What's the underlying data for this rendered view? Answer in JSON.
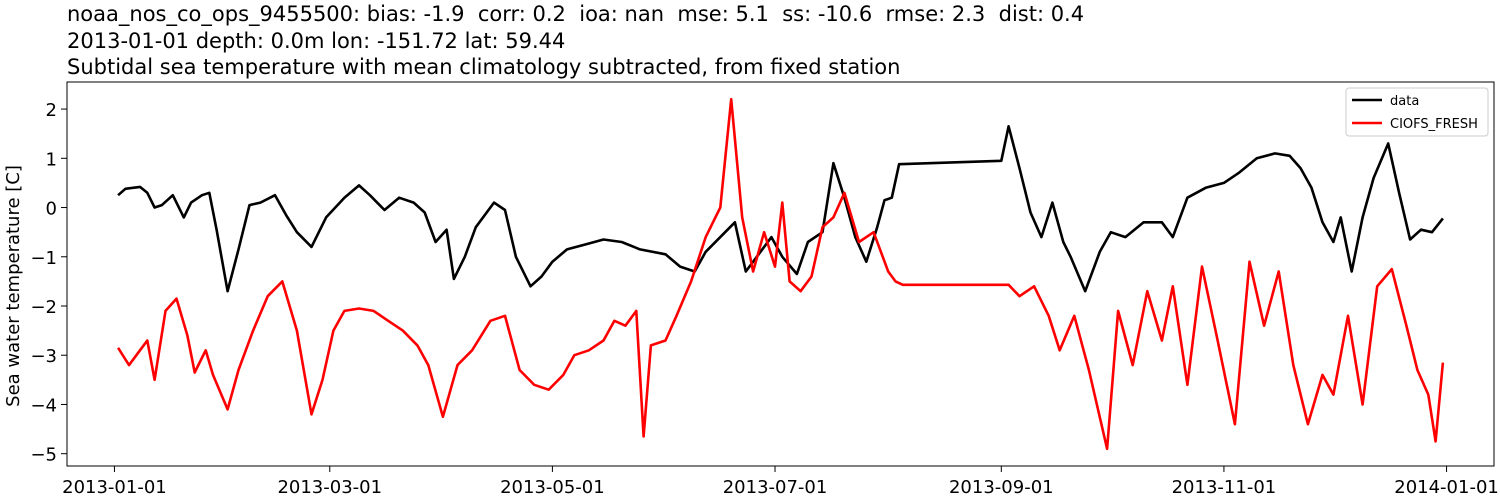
{
  "chart_data": {
    "type": "line",
    "title_lines": [
      "noaa_nos_co_ops_9455500: bias: -1.9  corr: 0.2  ioa: nan  mse: 5.1  ss: -10.6  rmse: 2.3  dist: 0.4",
      "2013-01-01 depth: 0.0m lon: -151.72 lat: 59.44",
      "Subtidal sea temperature with mean climatology subtracted, from fixed station"
    ],
    "xlabel": "",
    "ylabel": "Sea water temperature [C]",
    "x_ticks": [
      "2013-01-01",
      "2013-03-01",
      "2013-05-01",
      "2013-07-01",
      "2013-09-01",
      "2013-11-01",
      "2014-01-01"
    ],
    "x_range": [
      "2012-12-19",
      "2014-01-14"
    ],
    "ylim": [
      -5.25,
      2.55
    ],
    "y_ticks": [
      2,
      1,
      0,
      -1,
      -2,
      -3,
      -4,
      -5
    ],
    "legend_position": "top-right",
    "series": [
      {
        "name": "data",
        "color": "#000000",
        "points": [
          [
            "2013-01-02",
            0.25
          ],
          [
            "2013-01-04",
            0.38
          ],
          [
            "2013-01-08",
            0.42
          ],
          [
            "2013-01-10",
            0.3
          ],
          [
            "2013-01-12",
            0.0
          ],
          [
            "2013-01-14",
            0.05
          ],
          [
            "2013-01-17",
            0.25
          ],
          [
            "2013-01-20",
            -0.2
          ],
          [
            "2013-01-22",
            0.1
          ],
          [
            "2013-01-25",
            0.25
          ],
          [
            "2013-01-27",
            0.3
          ],
          [
            "2013-01-29",
            -0.45
          ],
          [
            "2013-02-01",
            -1.7
          ],
          [
            "2013-02-04",
            -0.85
          ],
          [
            "2013-02-07",
            0.05
          ],
          [
            "2013-02-10",
            0.1
          ],
          [
            "2013-02-14",
            0.25
          ],
          [
            "2013-02-17",
            -0.15
          ],
          [
            "2013-02-20",
            -0.5
          ],
          [
            "2013-02-24",
            -0.8
          ],
          [
            "2013-02-28",
            -0.2
          ],
          [
            "2013-03-05",
            0.2
          ],
          [
            "2013-03-09",
            0.45
          ],
          [
            "2013-03-12",
            0.25
          ],
          [
            "2013-03-16",
            -0.05
          ],
          [
            "2013-03-20",
            0.2
          ],
          [
            "2013-03-24",
            0.1
          ],
          [
            "2013-03-27",
            -0.1
          ],
          [
            "2013-03-30",
            -0.7
          ],
          [
            "2013-04-02",
            -0.45
          ],
          [
            "2013-04-04",
            -1.45
          ],
          [
            "2013-04-07",
            -1.0
          ],
          [
            "2013-04-10",
            -0.4
          ],
          [
            "2013-04-15",
            0.1
          ],
          [
            "2013-04-18",
            -0.05
          ],
          [
            "2013-04-21",
            -1.0
          ],
          [
            "2013-04-25",
            -1.6
          ],
          [
            "2013-04-28",
            -1.4
          ],
          [
            "2013-05-01",
            -1.1
          ],
          [
            "2013-05-05",
            -0.85
          ],
          [
            "2013-05-10",
            -0.75
          ],
          [
            "2013-05-15",
            -0.65
          ],
          [
            "2013-05-20",
            -0.7
          ],
          [
            "2013-05-25",
            -0.85
          ],
          [
            "2013-06-01",
            -0.95
          ],
          [
            "2013-06-05",
            -1.2
          ],
          [
            "2013-06-09",
            -1.3
          ],
          [
            "2013-06-12",
            -0.9
          ],
          [
            "2013-06-16",
            -0.6
          ],
          [
            "2013-06-20",
            -0.3
          ],
          [
            "2013-06-23",
            -1.3
          ],
          [
            "2013-06-26",
            -1.0
          ],
          [
            "2013-06-30",
            -0.6
          ],
          [
            "2013-07-03",
            -1.0
          ],
          [
            "2013-07-07",
            -1.35
          ],
          [
            "2013-07-10",
            -0.7
          ],
          [
            "2013-07-14",
            -0.5
          ],
          [
            "2013-07-17",
            0.9
          ],
          [
            "2013-07-20",
            0.2
          ],
          [
            "2013-07-23",
            -0.6
          ],
          [
            "2013-07-26",
            -1.1
          ],
          [
            "2013-07-29",
            -0.4
          ],
          [
            "2013-07-31",
            0.15
          ],
          [
            "2013-08-02",
            0.2
          ],
          [
            "2013-08-04",
            0.88
          ],
          [
            "2013-09-01",
            0.95
          ],
          [
            "2013-09-03",
            1.65
          ],
          [
            "2013-09-06",
            0.8
          ],
          [
            "2013-09-09",
            -0.1
          ],
          [
            "2013-09-12",
            -0.6
          ],
          [
            "2013-09-15",
            0.1
          ],
          [
            "2013-09-18",
            -0.7
          ],
          [
            "2013-09-20",
            -1.0
          ],
          [
            "2013-09-24",
            -1.7
          ],
          [
            "2013-09-28",
            -0.9
          ],
          [
            "2013-10-01",
            -0.5
          ],
          [
            "2013-10-05",
            -0.6
          ],
          [
            "2013-10-10",
            -0.3
          ],
          [
            "2013-10-15",
            -0.3
          ],
          [
            "2013-10-18",
            -0.6
          ],
          [
            "2013-10-22",
            0.2
          ],
          [
            "2013-10-27",
            0.4
          ],
          [
            "2013-11-01",
            0.5
          ],
          [
            "2013-11-05",
            0.7
          ],
          [
            "2013-11-10",
            1.0
          ],
          [
            "2013-11-15",
            1.1
          ],
          [
            "2013-11-19",
            1.05
          ],
          [
            "2013-11-22",
            0.8
          ],
          [
            "2013-11-25",
            0.4
          ],
          [
            "2013-11-28",
            -0.3
          ],
          [
            "2013-12-01",
            -0.7
          ],
          [
            "2013-12-03",
            -0.2
          ],
          [
            "2013-12-06",
            -1.3
          ],
          [
            "2013-12-09",
            -0.2
          ],
          [
            "2013-12-12",
            0.6
          ],
          [
            "2013-12-16",
            1.3
          ],
          [
            "2013-12-19",
            0.3
          ],
          [
            "2013-12-22",
            -0.65
          ],
          [
            "2013-12-25",
            -0.45
          ],
          [
            "2013-12-28",
            -0.5
          ],
          [
            "2013-12-31",
            -0.22
          ]
        ]
      },
      {
        "name": "CIOFS_FRESH",
        "color": "#ff0000",
        "points": [
          [
            "2013-01-02",
            -2.85
          ],
          [
            "2013-01-05",
            -3.2
          ],
          [
            "2013-01-08",
            -2.9
          ],
          [
            "2013-01-10",
            -2.7
          ],
          [
            "2013-01-12",
            -3.5
          ],
          [
            "2013-01-15",
            -2.1
          ],
          [
            "2013-01-18",
            -1.85
          ],
          [
            "2013-01-21",
            -2.6
          ],
          [
            "2013-01-23",
            -3.35
          ],
          [
            "2013-01-26",
            -2.9
          ],
          [
            "2013-01-28",
            -3.4
          ],
          [
            "2013-02-01",
            -4.1
          ],
          [
            "2013-02-04",
            -3.3
          ],
          [
            "2013-02-08",
            -2.5
          ],
          [
            "2013-02-12",
            -1.8
          ],
          [
            "2013-02-16",
            -1.5
          ],
          [
            "2013-02-20",
            -2.5
          ],
          [
            "2013-02-24",
            -4.2
          ],
          [
            "2013-02-27",
            -3.5
          ],
          [
            "2013-03-02",
            -2.5
          ],
          [
            "2013-03-05",
            -2.1
          ],
          [
            "2013-03-09",
            -2.05
          ],
          [
            "2013-03-13",
            -2.1
          ],
          [
            "2013-03-17",
            -2.3
          ],
          [
            "2013-03-21",
            -2.5
          ],
          [
            "2013-03-25",
            -2.8
          ],
          [
            "2013-03-28",
            -3.2
          ],
          [
            "2013-04-01",
            -4.25
          ],
          [
            "2013-04-05",
            -3.2
          ],
          [
            "2013-04-09",
            -2.9
          ],
          [
            "2013-04-14",
            -2.3
          ],
          [
            "2013-04-18",
            -2.2
          ],
          [
            "2013-04-22",
            -3.3
          ],
          [
            "2013-04-26",
            -3.6
          ],
          [
            "2013-04-30",
            -3.7
          ],
          [
            "2013-05-04",
            -3.4
          ],
          [
            "2013-05-07",
            -3.0
          ],
          [
            "2013-05-11",
            -2.9
          ],
          [
            "2013-05-15",
            -2.7
          ],
          [
            "2013-05-18",
            -2.3
          ],
          [
            "2013-05-21",
            -2.4
          ],
          [
            "2013-05-24",
            -2.1
          ],
          [
            "2013-05-26",
            -4.65
          ],
          [
            "2013-05-28",
            -2.8
          ],
          [
            "2013-06-01",
            -2.7
          ],
          [
            "2013-06-04",
            -2.2
          ],
          [
            "2013-06-08",
            -1.5
          ],
          [
            "2013-06-12",
            -0.6
          ],
          [
            "2013-06-16",
            0.0
          ],
          [
            "2013-06-19",
            2.2
          ],
          [
            "2013-06-22",
            -0.2
          ],
          [
            "2013-06-25",
            -1.3
          ],
          [
            "2013-06-28",
            -0.5
          ],
          [
            "2013-07-01",
            -1.2
          ],
          [
            "2013-07-03",
            0.1
          ],
          [
            "2013-07-05",
            -1.5
          ],
          [
            "2013-07-08",
            -1.7
          ],
          [
            "2013-07-11",
            -1.4
          ],
          [
            "2013-07-14",
            -0.4
          ],
          [
            "2013-07-17",
            -0.2
          ],
          [
            "2013-07-20",
            0.3
          ],
          [
            "2013-07-24",
            -0.7
          ],
          [
            "2013-07-28",
            -0.5
          ],
          [
            "2013-08-01",
            -1.3
          ],
          [
            "2013-08-03",
            -1.5
          ],
          [
            "2013-08-05",
            -1.57
          ],
          [
            "2013-09-03",
            -1.57
          ],
          [
            "2013-09-06",
            -1.8
          ],
          [
            "2013-09-10",
            -1.6
          ],
          [
            "2013-09-14",
            -2.2
          ],
          [
            "2013-09-17",
            -2.9
          ],
          [
            "2013-09-21",
            -2.2
          ],
          [
            "2013-09-25",
            -3.3
          ],
          [
            "2013-09-30",
            -4.9
          ],
          [
            "2013-10-03",
            -2.1
          ],
          [
            "2013-10-07",
            -3.2
          ],
          [
            "2013-10-11",
            -1.7
          ],
          [
            "2013-10-15",
            -2.7
          ],
          [
            "2013-10-18",
            -1.6
          ],
          [
            "2013-10-22",
            -3.6
          ],
          [
            "2013-10-26",
            -1.2
          ],
          [
            "2013-10-30",
            -2.6
          ],
          [
            "2013-11-04",
            -4.4
          ],
          [
            "2013-11-08",
            -1.1
          ],
          [
            "2013-11-12",
            -2.4
          ],
          [
            "2013-11-16",
            -1.3
          ],
          [
            "2013-11-20",
            -3.2
          ],
          [
            "2013-11-24",
            -4.4
          ],
          [
            "2013-11-28",
            -3.4
          ],
          [
            "2013-12-01",
            -3.8
          ],
          [
            "2013-12-05",
            -2.2
          ],
          [
            "2013-12-09",
            -4.0
          ],
          [
            "2013-12-13",
            -1.6
          ],
          [
            "2013-12-17",
            -1.25
          ],
          [
            "2013-12-21",
            -2.4
          ],
          [
            "2013-12-24",
            -3.3
          ],
          [
            "2013-12-27",
            -3.8
          ],
          [
            "2013-12-29",
            -4.75
          ],
          [
            "2013-12-31",
            -3.15
          ]
        ]
      }
    ]
  }
}
